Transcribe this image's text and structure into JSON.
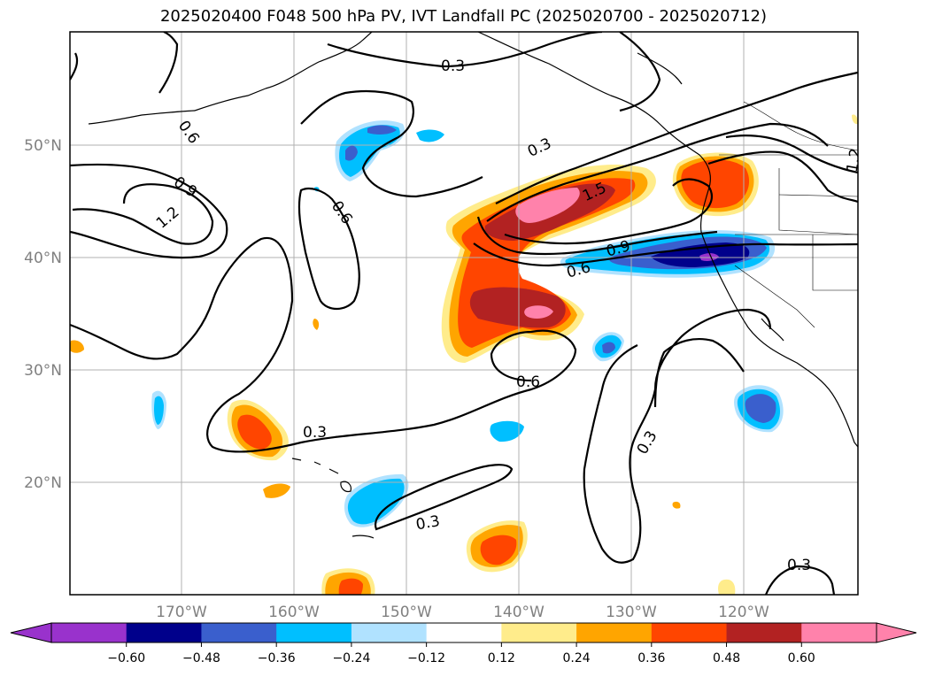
{
  "title": "2025020400 F048 500 hPa PV, IVT Landfall PC (2025020700 - 2025020712)",
  "lat_labels": [
    "50°N",
    "40°N",
    "30°N",
    "20°N"
  ],
  "lon_labels": [
    "170°W",
    "160°W",
    "150°W",
    "140°W",
    "130°W",
    "120°W"
  ],
  "contour_labels": [
    "0.3",
    "0.6",
    "0.6",
    "0.9",
    "1.2",
    "0.6",
    "0.3",
    "1.5",
    "0.9",
    "0.6",
    "0.6",
    "0.3",
    "0.3",
    "0.3",
    "0.3",
    "1.2"
  ],
  "colorbar": {
    "ticks": [
      "−0.60",
      "−0.48",
      "−0.36",
      "−0.24",
      "−0.12",
      "0.12",
      "0.24",
      "0.36",
      "0.48",
      "0.60"
    ],
    "colors": [
      "#9932cc",
      "#00008b",
      "#3a5fcd",
      "#00bfff",
      "#b0e2ff",
      "#ffffff",
      "#ffec8b",
      "#ffa500",
      "#ff4500",
      "#b22222",
      "#ff82ab"
    ]
  },
  "colors": {
    "coast": "#000000",
    "grid": "#b0b0b0",
    "axis_text": "#808080"
  }
}
